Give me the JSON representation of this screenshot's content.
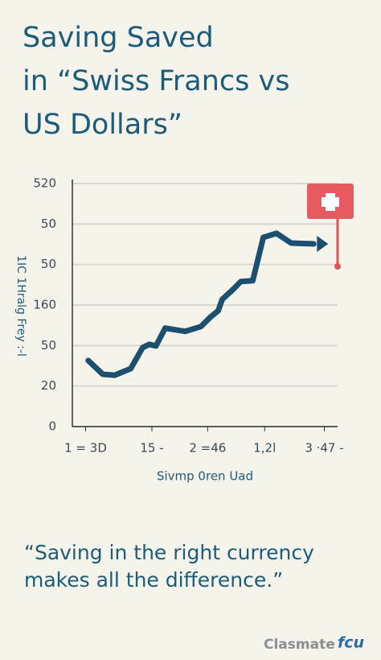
{
  "header": {
    "title_lines": [
      "Saving Saved",
      "in “Swiss Francs vs",
      "US Dollars”"
    ]
  },
  "chart_data": {
    "type": "line",
    "ylabel": "1IC 1Hralg Frey :-l",
    "xlabel": "Sivmp 0ren Uad",
    "xlim": [
      0,
      20
    ],
    "ylim": [
      0,
      6
    ],
    "xticks": [
      {
        "value": 1,
        "label": "1 = 3D"
      },
      {
        "value": 6,
        "label": "15 -"
      },
      {
        "value": 10.2,
        "label": "2 =46"
      },
      {
        "value": 14.5,
        "label": "1,2l"
      },
      {
        "value": 19,
        "label": "3 ·47 -"
      }
    ],
    "yticks": [
      {
        "value": 0,
        "label": "0"
      },
      {
        "value": 1,
        "label": "20"
      },
      {
        "value": 2,
        "label": "50"
      },
      {
        "value": 3,
        "label": "160"
      },
      {
        "value": 4,
        "label": "50"
      },
      {
        "value": 5,
        "label": "50"
      },
      {
        "value": 6,
        "label": "520"
      }
    ],
    "grid": true,
    "series": [
      {
        "color": "#1d4f6e",
        "x": [
          1.2,
          2.3,
          3.2,
          4.4,
          5.3,
          5.8,
          6.3,
          7.0,
          8.5,
          9.7,
          10.4,
          11.0,
          11.3,
          12.1,
          12.7,
          13.6,
          14.4,
          15.4,
          16.5,
          18.2
        ],
        "values": [
          1.63,
          1.29,
          1.27,
          1.43,
          1.95,
          2.03,
          1.99,
          2.43,
          2.35,
          2.47,
          2.7,
          2.86,
          3.14,
          3.38,
          3.58,
          3.6,
          4.67,
          4.77,
          4.53,
          4.51
        ]
      }
    ]
  },
  "quote_lines": [
    "“Saving in the right currency",
    "makes all the difference.”"
  ],
  "footer": {
    "brand": "Clasmate",
    "brand_mark": "fcu"
  }
}
